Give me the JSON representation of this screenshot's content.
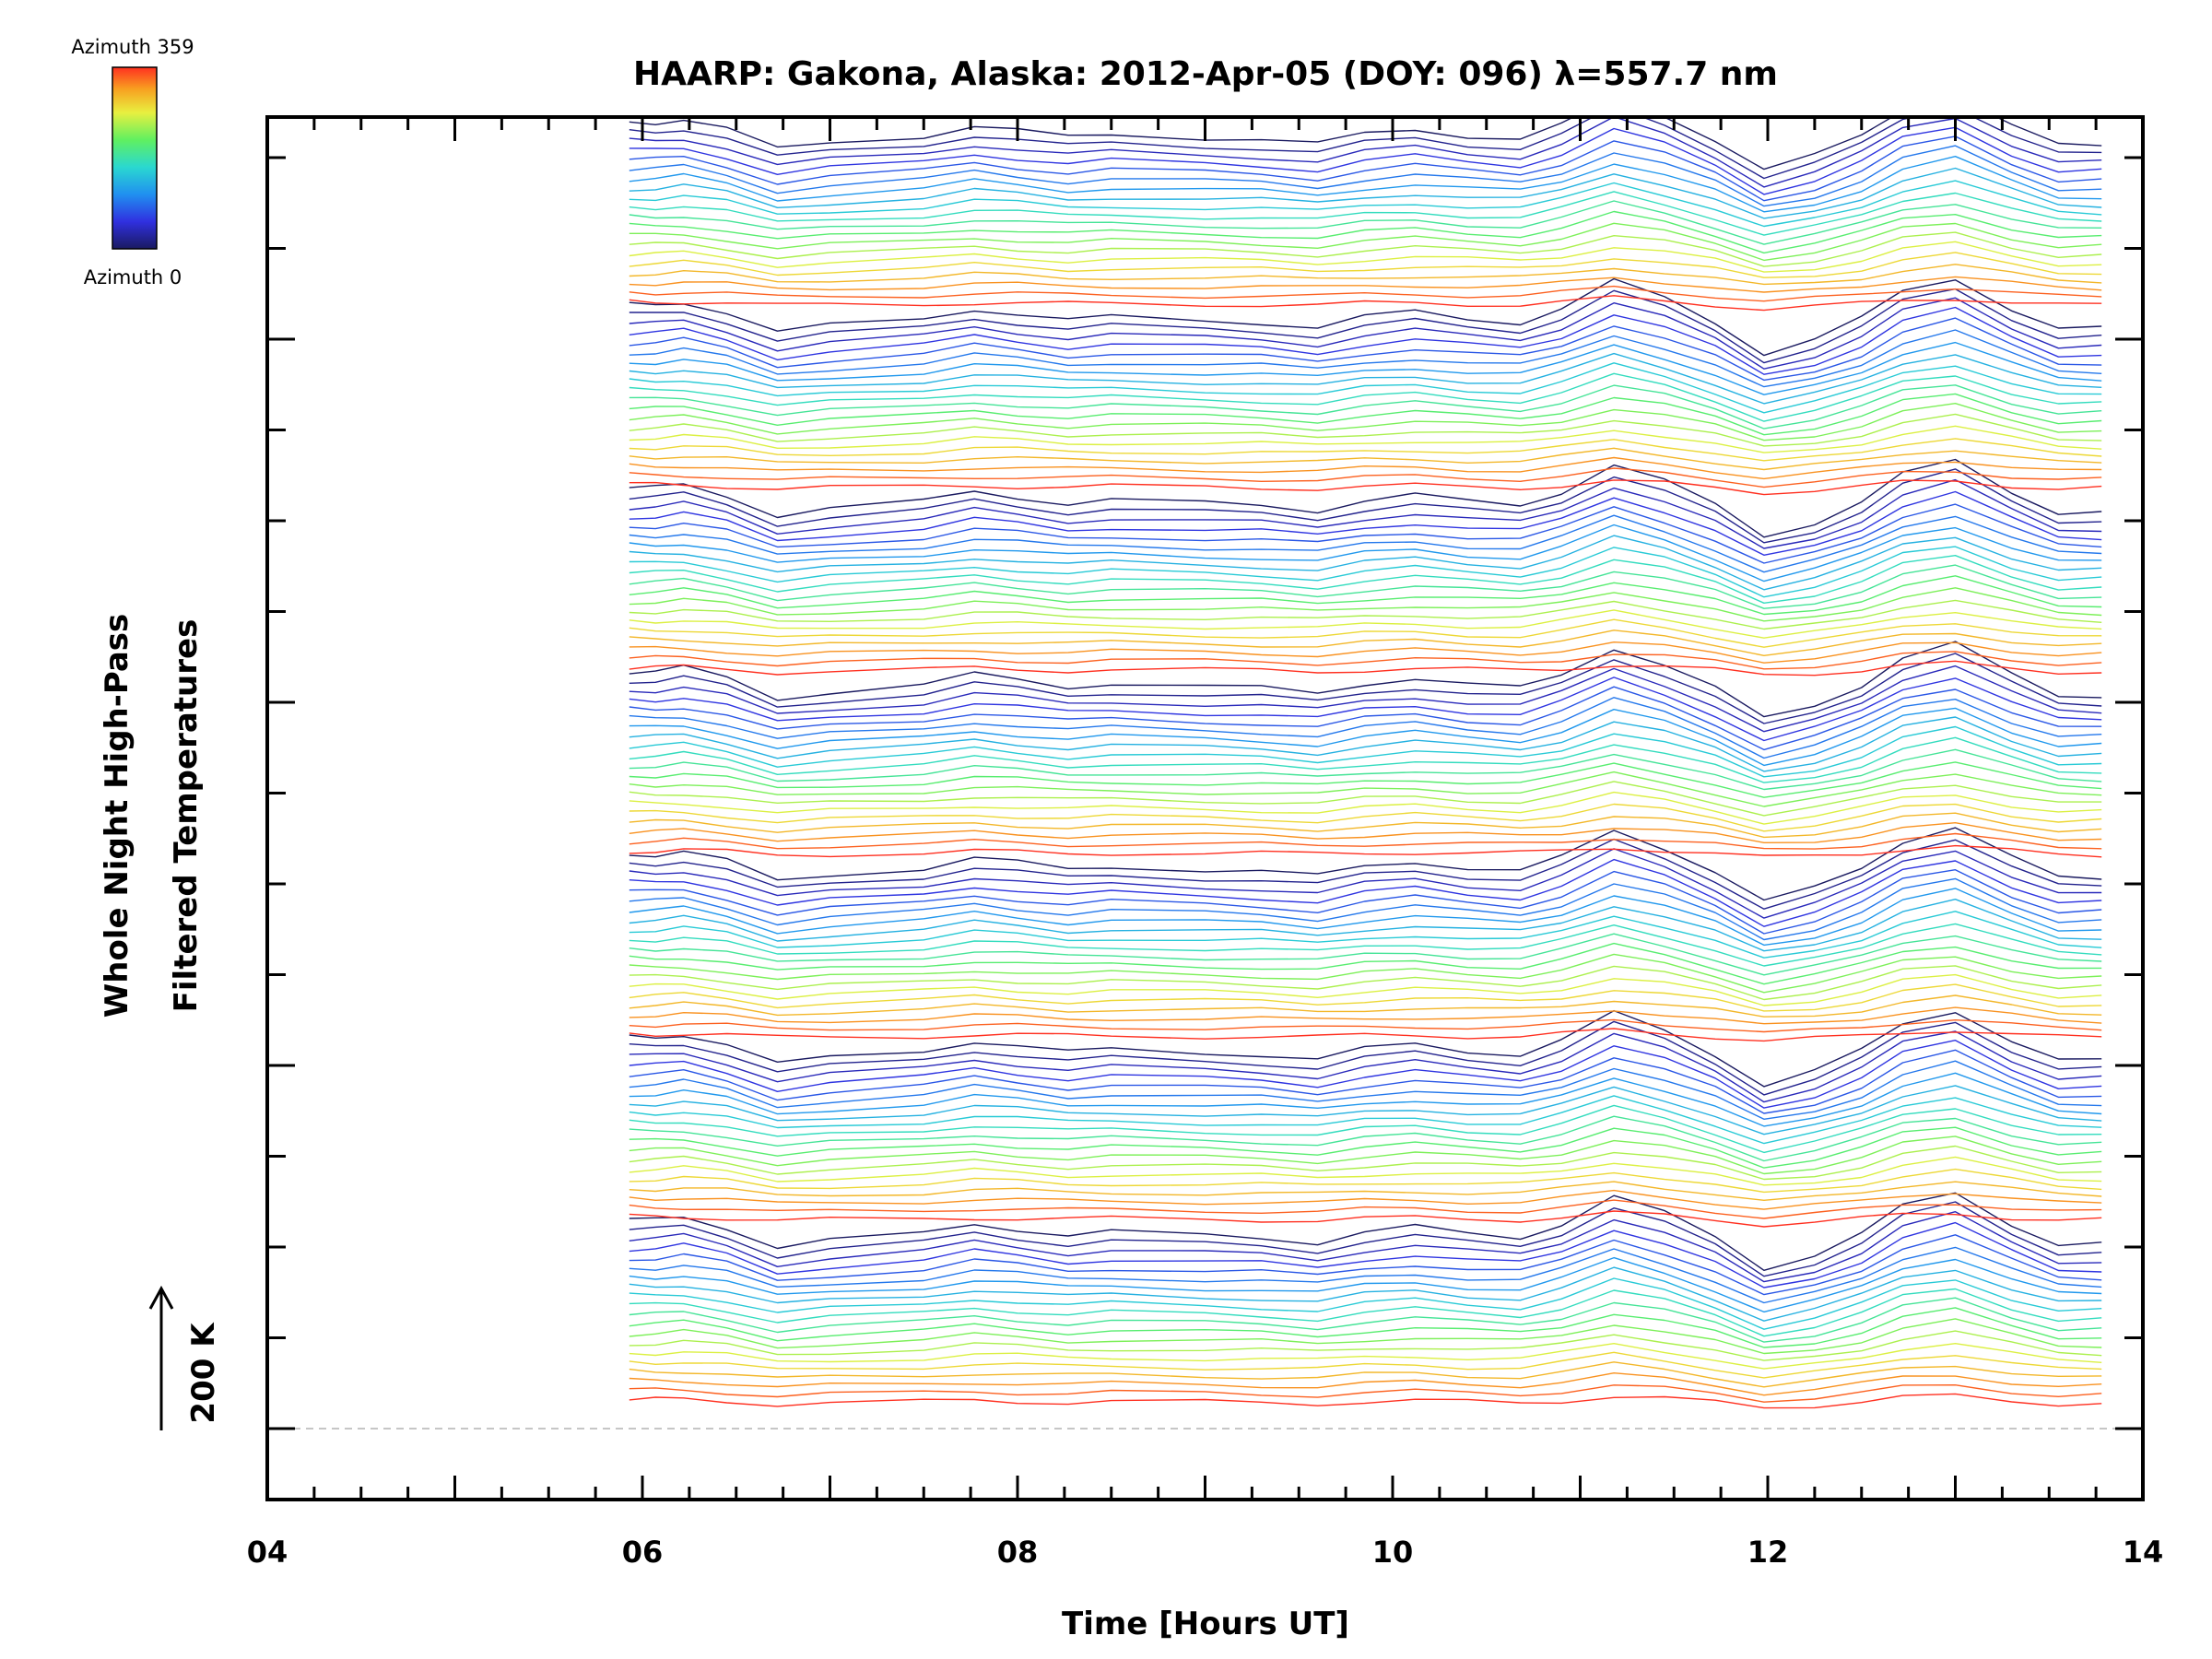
{
  "chart_data": {
    "type": "line",
    "title": "HAARP: Gakona,  Alaska: 2012-Apr-05 (DOY: 096) λ=557.7 nm",
    "xlabel": "Time [Hours UT]",
    "ylabel_lines": [
      "Whole Night High-Pass",
      "Filtered Temperatures"
    ],
    "xlim": [
      4,
      14
    ],
    "x_ticks": [
      "04",
      "06",
      "08",
      "10",
      "12",
      "14"
    ],
    "scale_bar_label": "200 K",
    "colorbar": {
      "top_label": "Azimuth 359",
      "bottom_label": "Azimuth 0",
      "colormap": "rainbow",
      "range": [
        0,
        359
      ]
    },
    "baseline": "dashed",
    "stacked_profiles": 140,
    "azimuth_cycle": 20,
    "sample_times": [
      5.93,
      6.07,
      6.22,
      6.45,
      6.72,
      7.0,
      7.5,
      7.77,
      8.0,
      8.27,
      8.5,
      9.0,
      9.3,
      9.6,
      9.85,
      10.12,
      10.4,
      10.68,
      10.9,
      11.18,
      11.45,
      11.72,
      11.98,
      12.25,
      12.5,
      12.72,
      13.0,
      13.3,
      13.55,
      13.78
    ],
    "representative_profile_K": [
      20,
      20,
      30,
      0,
      -60,
      -40,
      -20,
      10,
      -5,
      -25,
      -15,
      -25,
      -30,
      -45,
      -15,
      0,
      -20,
      -30,
      10,
      90,
      40,
      -30,
      -120,
      -80,
      -20,
      60,
      100,
      10,
      -50,
      -50
    ],
    "colors": {
      "azimuth_0": "#1a1a60",
      "azimuth_90": "#2ad0d8",
      "azimuth_180": "#a8f048",
      "azimuth_270": "#f4b020",
      "azimuth_359": "#ff3c1e",
      "baseline": "#b4b4b4",
      "axis": "#000000"
    }
  }
}
